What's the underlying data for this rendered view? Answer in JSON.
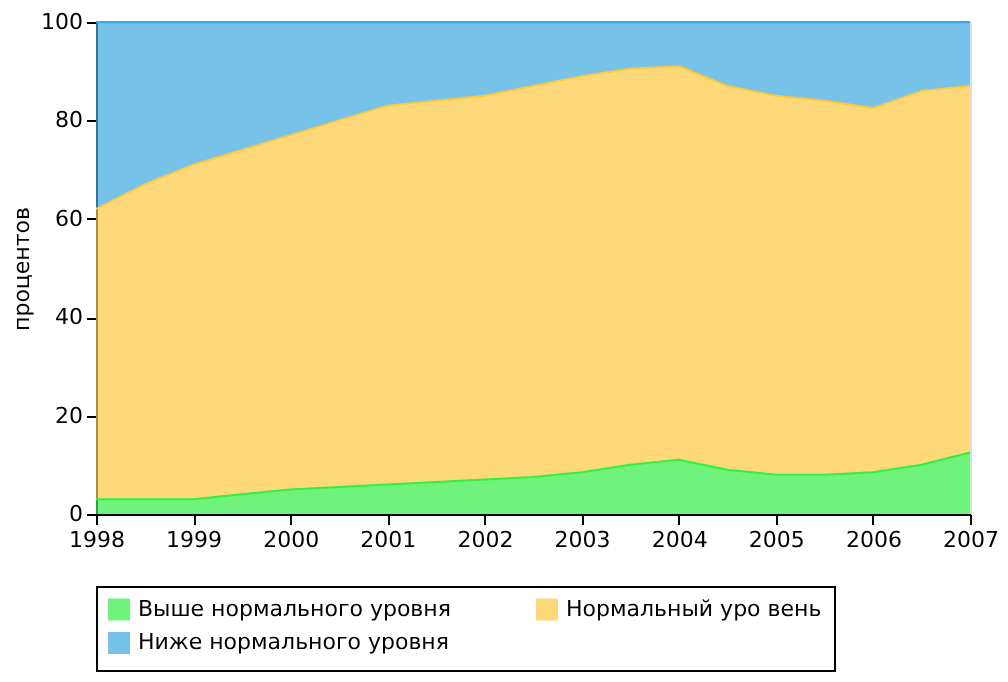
{
  "chart_data": {
    "type": "area",
    "stacked": true,
    "ylabel": "процентов",
    "x": [
      1998,
      1998.5,
      1999,
      1999.5,
      2000,
      2000.5,
      2001,
      2001.5,
      2002,
      2002.5,
      2003,
      2003.5,
      2004,
      2004.5,
      2005,
      2005.5,
      2006,
      2006.5,
      2007
    ],
    "series": [
      {
        "name": "Выше нормального уровня",
        "color": "#33ee44",
        "values": [
          3,
          3,
          3,
          4,
          5,
          5.5,
          6,
          6.5,
          7,
          7.5,
          8.5,
          10,
          11,
          9,
          8,
          8,
          8.5,
          10,
          12.5
        ]
      },
      {
        "name": "Нормальный уро вень",
        "color": "#ffc840",
        "values": [
          59,
          64,
          68,
          70,
          72,
          74.5,
          77,
          77.5,
          78,
          79.5,
          80.5,
          80.5,
          80,
          78,
          77,
          76,
          74,
          76,
          74.5
        ]
      },
      {
        "name": "Ниже нормального уровня",
        "color": "#3ca8e0",
        "values": [
          38,
          33,
          29,
          26,
          23,
          20,
          17,
          16,
          15,
          13,
          11,
          9.5,
          9,
          13,
          15,
          16,
          17.5,
          14,
          13
        ]
      }
    ],
    "xlim": [
      1998,
      2007
    ],
    "xticks": [
      1998,
      1999,
      2000,
      2001,
      2002,
      2003,
      2004,
      2005,
      2006,
      2007
    ],
    "ylim": [
      0,
      100
    ],
    "yticks": [
      0,
      20,
      40,
      60,
      80,
      100
    ],
    "grid": false,
    "legend": "bottom"
  }
}
